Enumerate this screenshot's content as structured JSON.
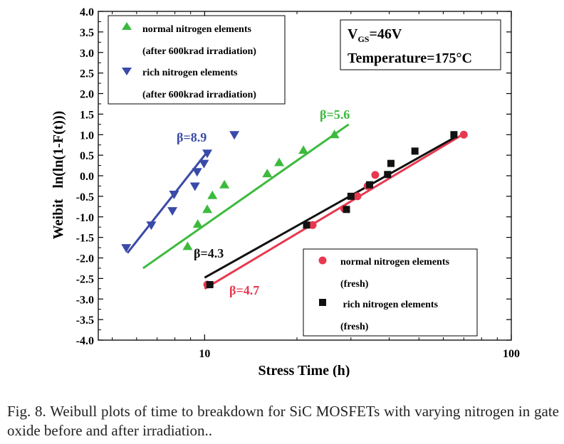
{
  "chart_data": {
    "type": "scatter",
    "title": "",
    "xlabel": "Stress Time (h)",
    "ylabel": "Weibit   ln(ln(1-F(t)))",
    "x_scale": "log",
    "xlim": [
      4.5,
      100
    ],
    "ylim": [
      -4.0,
      4.0
    ],
    "x_ticks": [
      10,
      100
    ],
    "x_tick_labels": [
      "10",
      "100"
    ],
    "y_ticks": [
      -4.0,
      -3.5,
      -3.0,
      -2.5,
      -2.0,
      -1.5,
      -1.0,
      -0.5,
      0.0,
      0.5,
      1.0,
      1.5,
      2.0,
      2.5,
      3.0,
      3.5,
      4.0
    ],
    "y_tick_labels": [
      "-4.0",
      "-3.5",
      "-3.0",
      "-2.5",
      "-2.0",
      "-1.5",
      "-1.0",
      "-0.5",
      "0.0",
      "0.5",
      "1.0",
      "1.5",
      "2.0",
      "2.5",
      "3.0",
      "3.5",
      "4.0"
    ],
    "grid": false,
    "series": [
      {
        "name": "normal nitrogen elements (after 600krad irradiation)",
        "legend_lines": [
          "normal nitrogen elements",
          "(after 600krad irradiation)"
        ],
        "marker": "triangle-up",
        "color": "#3dba3d",
        "x": [
          8.8,
          9.5,
          10.2,
          10.6,
          11.6,
          16.0,
          17.5,
          21.0,
          26.5
        ],
        "y": [
          -1.72,
          -1.18,
          -0.82,
          -0.48,
          -0.22,
          0.05,
          0.32,
          0.62,
          1.0
        ],
        "fit": {
          "x": [
            6.3,
            29.5
          ],
          "y": [
            -2.25,
            1.25
          ],
          "label": "β=5.6",
          "label_color": "#3dba3d"
        }
      },
      {
        "name": "rich nitrogen elements (after 600krad irradiation)",
        "legend_lines": [
          "rich nitrogen elements",
          "(after 600krad irradiation)"
        ],
        "marker": "triangle-down",
        "color": "#3a4aa8",
        "x": [
          5.55,
          6.7,
          7.95,
          7.85,
          9.3,
          9.45,
          9.95,
          10.2,
          12.5
        ],
        "y": [
          -1.75,
          -1.2,
          -0.45,
          -0.85,
          -0.25,
          0.1,
          0.3,
          0.55,
          1.0
        ],
        "fit": {
          "x": [
            5.6,
            10.3
          ],
          "y": [
            -1.88,
            0.62
          ],
          "label": "β=8.9",
          "label_color": "#3a4aa8"
        }
      },
      {
        "name": "normal nitrogen elements (fresh)",
        "legend_lines": [
          "normal nitrogen elements",
          "(fresh)"
        ],
        "marker": "circle",
        "color": "#e8384f",
        "x": [
          10.2,
          22.5,
          28.5,
          31.5,
          34.0,
          36.0,
          70.0
        ],
        "y": [
          -2.65,
          -1.2,
          -0.8,
          -0.5,
          -0.25,
          0.02,
          1.0
        ],
        "fit": {
          "x": [
            10.0,
            70.0
          ],
          "y": [
            -2.75,
            1.02
          ],
          "label": "β=4.7",
          "label_color": "#e8384f"
        }
      },
      {
        "name": "rich nitrogen elements (fresh)",
        "legend_lines": [
          " rich nitrogen elements",
          "(fresh)"
        ],
        "marker": "square",
        "color": "#111111",
        "x": [
          10.4,
          21.5,
          29.0,
          30.0,
          34.5,
          39.5,
          40.5,
          48.5,
          65.0
        ],
        "y": [
          -2.65,
          -1.2,
          -0.82,
          -0.5,
          -0.22,
          0.03,
          0.3,
          0.6,
          1.0
        ],
        "fit": {
          "x": [
            10.0,
            66.0
          ],
          "y": [
            -2.48,
            0.95
          ],
          "label": "β=4.3",
          "label_color": "#111111"
        }
      }
    ],
    "conditions": [
      "V_GS=46V",
      "Temperature=175°C"
    ],
    "conditions_parts": {
      "vgs_prefix": "V",
      "vgs_sub": "GS",
      "vgs_value": "=46V",
      "temperature": "Temperature=175°C"
    }
  },
  "caption": "Fig. 8.   Weibull plots of time to breakdown for SiC MOSFETs with varying nitrogen in gate oxide before and after irradiation.."
}
